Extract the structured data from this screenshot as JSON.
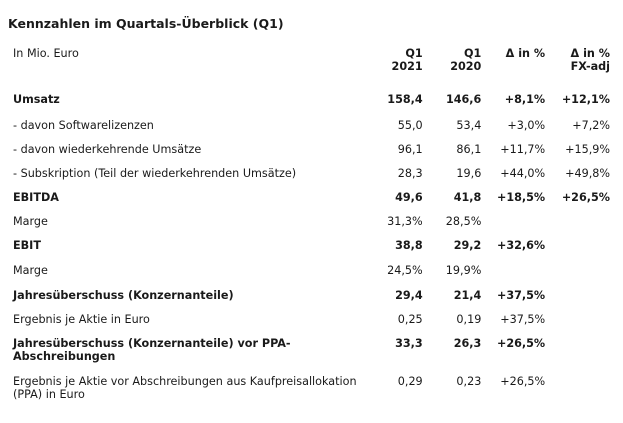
{
  "title": "Kennzahlen im Quartals-Überblick (Q1)",
  "header": {
    "unit": "In Mio. Euro",
    "col1_line1": "Q1",
    "col1_line2": "2021",
    "col2_line1": "Q1",
    "col2_line2": "2020",
    "col3_line1": "Δ in %",
    "col4_line1": "Δ in %",
    "col4_line2": "FX-adj"
  },
  "rows": [
    {
      "label": "Umsatz",
      "q1_2021": "158,4",
      "q1_2020": "146,6",
      "delta": "+8,1%",
      "delta_fx": "+12,1%",
      "bold": true
    },
    {
      "label": "- davon Softwarelizenzen",
      "q1_2021": "55,0",
      "q1_2020": "53,4",
      "delta": "+3,0%",
      "delta_fx": "+7,2%",
      "bold": false
    },
    {
      "label": "- davon wiederkehrende Umsätze",
      "q1_2021": "96,1",
      "q1_2020": "86,1",
      "delta": "+11,7%",
      "delta_fx": "+15,9%",
      "bold": false
    },
    {
      "label": "- Subskription (Teil der wiederkehrenden Umsätze)",
      "q1_2021": "28,3",
      "q1_2020": "19,6",
      "delta": "+44,0%",
      "delta_fx": "+49,8%",
      "bold": false
    },
    {
      "label": "EBITDA",
      "q1_2021": "49,6",
      "q1_2020": "41,8",
      "delta": "+18,5%",
      "delta_fx": "+26,5%",
      "bold": true
    },
    {
      "label": "Marge",
      "q1_2021": "31,3%",
      "q1_2020": "28,5%",
      "delta": "",
      "delta_fx": "",
      "bold": false
    },
    {
      "label": "EBIT",
      "q1_2021": "38,8",
      "q1_2020": "29,2",
      "delta": "+32,6%",
      "delta_fx": "",
      "bold": true
    },
    {
      "label": "Marge",
      "q1_2021": "24,5%",
      "q1_2020": "19,9%",
      "delta": "",
      "delta_fx": "",
      "bold": false
    },
    {
      "label": "Jahresüberschuss (Konzernanteile)",
      "q1_2021": "29,4",
      "q1_2020": "21,4",
      "delta": "+37,5%",
      "delta_fx": "",
      "bold": true
    },
    {
      "label": "Ergebnis je Aktie in Euro",
      "q1_2021": "0,25",
      "q1_2020": "0,19",
      "delta": "+37,5%",
      "delta_fx": "",
      "bold": false
    },
    {
      "label": "Jahresüberschuss (Konzernanteile) vor PPA-Abschreibungen",
      "q1_2021": "33,3",
      "q1_2020": "26,3",
      "delta": "+26,5%",
      "delta_fx": "",
      "bold": true
    },
    {
      "label": "Ergebnis je Aktie vor Abschreibungen aus Kaufpreisallokation (PPA) in Euro",
      "q1_2021": "0,29",
      "q1_2020": "0,23",
      "delta": "+26,5%",
      "delta_fx": "",
      "bold": false
    }
  ]
}
